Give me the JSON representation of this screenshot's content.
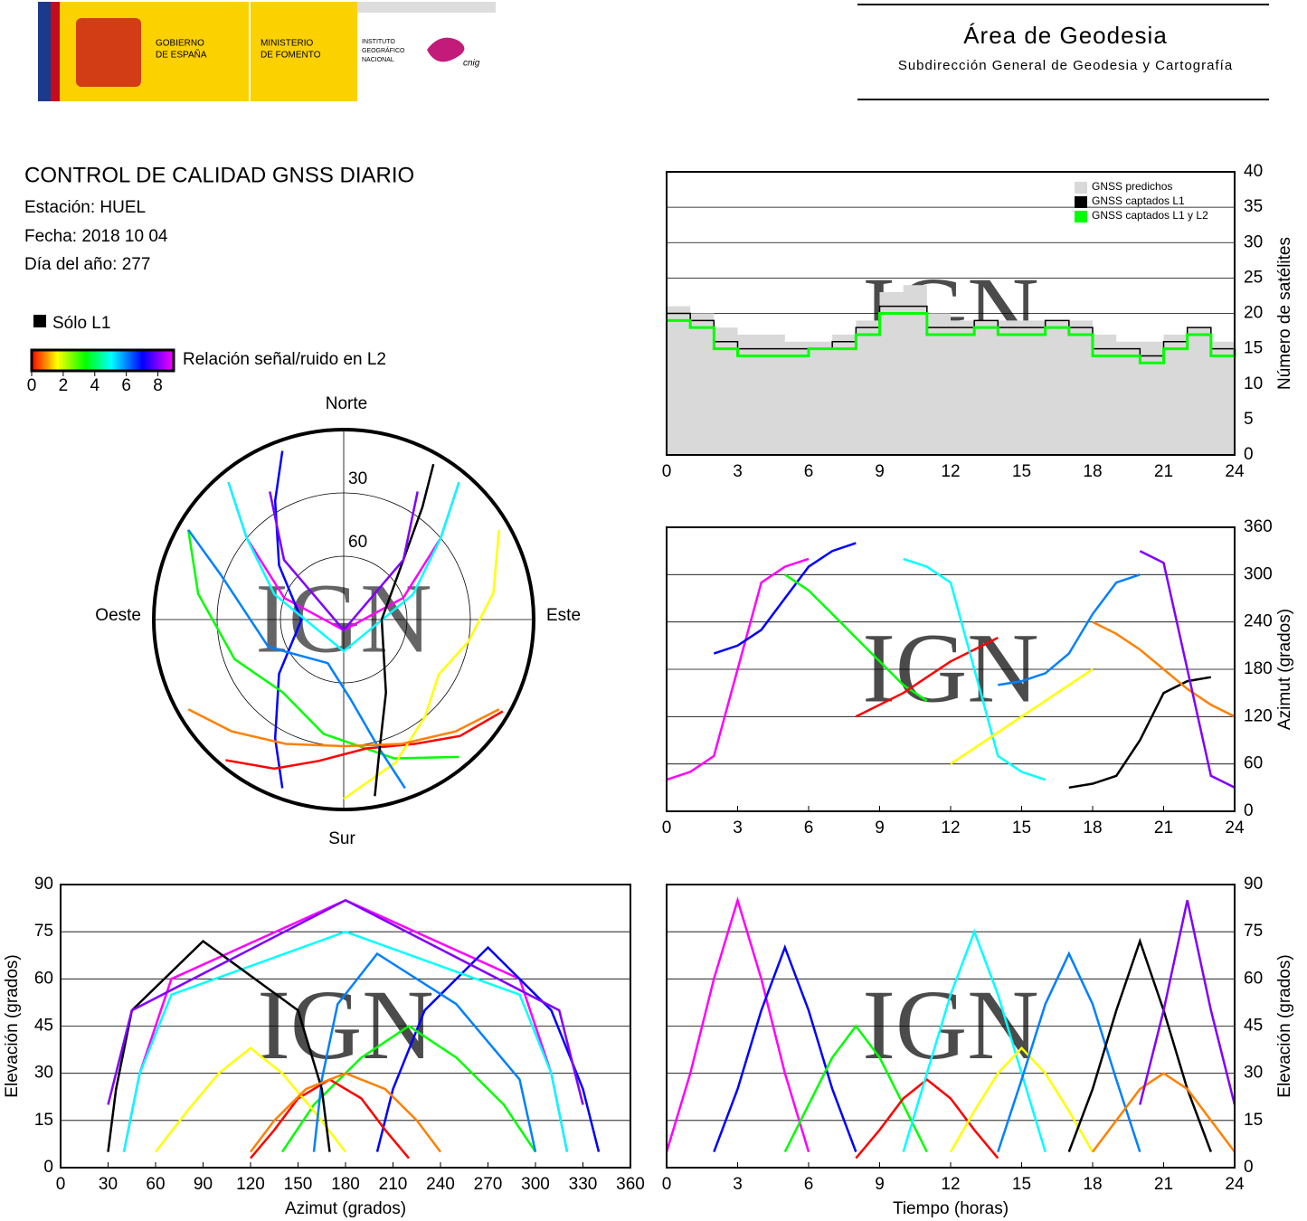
{
  "header": {
    "gobierno": [
      "GOBIERNO",
      "DE ESPAÑA"
    ],
    "ministerio": [
      "MINISTERIO",
      "DE FOMENTO"
    ],
    "instituto": [
      "INSTITUTO",
      "GEOGRÁFICO",
      "NACIONAL"
    ],
    "cnig": "cnig",
    "area": "Área de Geodesia",
    "subdireccion": "Subdirección General de Geodesia y Cartografía"
  },
  "report": {
    "title": "CONTROL DE CALIDAD GNSS DIARIO",
    "station": "Estación: HUEL",
    "date": "Fecha: 2018 10 04",
    "doy": "Día del año: 277",
    "l1_only": "Sólo L1",
    "colorbar_label": "Relación señal/ruido en L2",
    "clim": [
      0,
      9
    ],
    "cticks": [
      0,
      2,
      4,
      6,
      8
    ]
  },
  "chart_data": [
    {
      "type": "step",
      "ylabel": "Número de satélites",
      "watermark": "IGN",
      "yaxis_side": "right",
      "grid": true,
      "legend": "top-right",
      "xlim": [
        0,
        24
      ],
      "xticks": [
        0,
        3,
        6,
        9,
        12,
        15,
        18,
        21,
        24
      ],
      "ylim": [
        0,
        40
      ],
      "yticks": [
        0,
        5,
        10,
        15,
        20,
        25,
        30,
        35,
        40
      ],
      "x": [
        0,
        1,
        2,
        3,
        4,
        5,
        6,
        7,
        8,
        9,
        10,
        11,
        12,
        13,
        14,
        15,
        16,
        17,
        18,
        19,
        20,
        21,
        22,
        23,
        24
      ],
      "series": [
        {
          "name": "GNSS predichos",
          "color": "#d9d9d9",
          "area": true,
          "values": [
            21,
            20,
            18,
            17,
            17,
            16,
            16,
            17,
            19,
            23,
            24,
            20,
            19,
            19,
            19,
            19,
            19,
            19,
            17,
            16,
            16,
            17,
            18,
            16,
            16
          ]
        },
        {
          "name": "GNSS captados L1",
          "color": "#000000",
          "area": false,
          "values": [
            20,
            19,
            16,
            15,
            15,
            15,
            15,
            16,
            18,
            21,
            21,
            18,
            18,
            19,
            18,
            18,
            19,
            18,
            15,
            15,
            14,
            16,
            18,
            15,
            16
          ]
        },
        {
          "name": "GNSS captados L1 y L2",
          "color": "#00ff00",
          "area": false,
          "values": [
            19,
            18,
            15,
            14,
            14,
            14,
            15,
            15,
            17,
            20,
            20,
            17,
            17,
            18,
            17,
            17,
            18,
            17,
            14,
            14,
            13,
            15,
            17,
            14,
            15
          ]
        }
      ]
    },
    {
      "type": "gnss_tracks",
      "watermark": "IGN",
      "passes": [
        {
          "color": "#ff00ff",
          "t": [
            0,
            1,
            2,
            3,
            4,
            5,
            6
          ],
          "az": [
            40,
            50,
            70,
            180,
            290,
            310,
            320
          ],
          "el": [
            5,
            30,
            60,
            85,
            60,
            30,
            5
          ]
        },
        {
          "color": "#0000ff",
          "t": [
            2,
            3,
            4,
            5,
            6,
            7,
            8
          ],
          "az": [
            200,
            210,
            230,
            270,
            310,
            330,
            340
          ],
          "el": [
            5,
            25,
            50,
            70,
            50,
            25,
            5
          ]
        },
        {
          "color": "#00ff00",
          "t": [
            5,
            6,
            7,
            8,
            9,
            10,
            11
          ],
          "az": [
            300,
            280,
            250,
            220,
            190,
            160,
            140
          ],
          "el": [
            5,
            20,
            35,
            45,
            35,
            20,
            5
          ]
        },
        {
          "color": "#ff0000",
          "t": [
            8,
            9,
            10,
            11,
            12,
            13,
            14
          ],
          "az": [
            120,
            135,
            150,
            170,
            190,
            205,
            220
          ],
          "el": [
            3,
            12,
            22,
            28,
            22,
            12,
            3
          ]
        },
        {
          "color": "#00ffff",
          "t": [
            10,
            11,
            12,
            13,
            14,
            15,
            16
          ],
          "az": [
            320,
            310,
            290,
            180,
            70,
            50,
            40
          ],
          "el": [
            5,
            30,
            55,
            75,
            55,
            30,
            5
          ]
        },
        {
          "color": "#ffff00",
          "t": [
            12,
            13,
            14,
            15,
            16,
            17,
            18
          ],
          "az": [
            60,
            80,
            100,
            120,
            140,
            160,
            180
          ],
          "el": [
            5,
            18,
            30,
            38,
            30,
            18,
            5
          ]
        },
        {
          "color": "#0080ff",
          "t": [
            14,
            15,
            16,
            17,
            18,
            19,
            20
          ],
          "az": [
            160,
            165,
            175,
            200,
            250,
            290,
            300
          ],
          "el": [
            5,
            28,
            52,
            68,
            52,
            28,
            5
          ]
        },
        {
          "color": "#000000",
          "t": [
            17,
            18,
            19,
            20,
            21,
            22,
            23
          ],
          "az": [
            30,
            35,
            45,
            90,
            150,
            165,
            170
          ],
          "el": [
            5,
            25,
            50,
            72,
            50,
            25,
            5
          ]
        },
        {
          "color": "#ff8000",
          "t": [
            18,
            19,
            20,
            21,
            22,
            23,
            24
          ],
          "az": [
            240,
            225,
            205,
            180,
            155,
            135,
            120
          ],
          "el": [
            5,
            15,
            25,
            30,
            25,
            15,
            5
          ]
        },
        {
          "color": "#8000ff",
          "t": [
            20,
            21,
            22,
            23,
            24
          ],
          "az": [
            330,
            315,
            180,
            45,
            30
          ],
          "el": [
            20,
            50,
            85,
            50,
            20
          ]
        }
      ],
      "skyplot": {
        "north": "Norte",
        "south": "Sur",
        "east": "Este",
        "west": "Oeste",
        "rticks": [
          30,
          60
        ]
      },
      "azimuth_time": {
        "ylabel": "Azimut (grados)",
        "yaxis_side": "right",
        "xlim": [
          0,
          24
        ],
        "xticks": [
          0,
          3,
          6,
          9,
          12,
          15,
          18,
          21,
          24
        ],
        "ylim": [
          0,
          360
        ],
        "yticks": [
          0,
          60,
          120,
          180,
          240,
          300,
          360
        ]
      },
      "elevation_azimuth": {
        "xlabel": "Azimut (grados)",
        "ylabel": "Elevación (grados)",
        "yaxis_side": "left",
        "xlim": [
          0,
          360
        ],
        "xticks": [
          0,
          30,
          60,
          90,
          120,
          150,
          180,
          210,
          240,
          270,
          300,
          330,
          360
        ],
        "ylim": [
          0,
          90
        ],
        "yticks": [
          0,
          15,
          30,
          45,
          60,
          75,
          90
        ]
      },
      "elevation_time": {
        "xlabel": "Tiempo (horas)",
        "ylabel": "Elevación (grados)",
        "yaxis_side": "right",
        "xlim": [
          0,
          24
        ],
        "xticks": [
          0,
          3,
          6,
          9,
          12,
          15,
          18,
          21,
          24
        ],
        "ylim": [
          0,
          90
        ],
        "yticks": [
          0,
          15,
          30,
          45,
          60,
          75,
          90
        ]
      }
    }
  ]
}
